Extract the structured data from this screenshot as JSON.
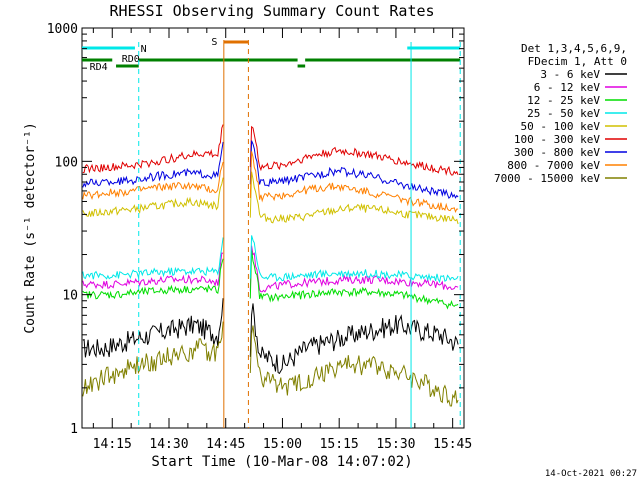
{
  "chart_data": {
    "type": "line",
    "title": "RHESSI Observing Summary Count Rates",
    "xlabel": "Start Time (10-Mar-08 14:07:02)",
    "ylabel": "Count Rate (s⁻¹ detector⁻¹)",
    "yscale": "log",
    "ylim": [
      1,
      1000
    ],
    "xlim_minutes": [
      0,
      101
    ],
    "x_ticks": [
      {
        "label": "14:15",
        "min": 8
      },
      {
        "label": "14:30",
        "min": 23
      },
      {
        "label": "14:45",
        "min": 38
      },
      {
        "label": "15:00",
        "min": 53
      },
      {
        "label": "15:15",
        "min": 68
      },
      {
        "label": "15:30",
        "min": 83
      },
      {
        "label": "15:45",
        "min": 98
      }
    ],
    "y_ticks": [
      {
        "label": "1",
        "value": 1
      },
      {
        "label": "10",
        "value": 10
      },
      {
        "label": "100",
        "value": 100
      },
      {
        "label": "1000",
        "value": 1000
      }
    ],
    "timestamp": "14-Oct-2021 00:27",
    "legend": {
      "placement": "right",
      "header": [
        "Det 1,3,4,5,6,9,",
        "FDecim 1, Att 0"
      ]
    },
    "series": [
      {
        "name": "3 - 6 keV",
        "color": "#000000",
        "values": [
          4,
          4,
          4.5,
          5,
          5.5,
          6,
          5,
          4.5,
          3.5,
          3,
          4,
          4.5,
          5,
          5.5,
          6,
          5.5,
          5,
          4
        ]
      },
      {
        "name": "6 - 12 keV",
        "color": "#e000e0",
        "values": [
          12,
          12,
          12.5,
          13,
          13,
          12,
          11,
          12,
          12.5,
          13,
          13,
          12.5,
          12,
          11
        ]
      },
      {
        "name": "12 - 25 keV",
        "color": "#00dd00",
        "values": [
          10,
          10,
          10.5,
          11,
          11,
          10,
          9.5,
          10,
          10.5,
          10.5,
          10,
          9,
          8
        ]
      },
      {
        "name": "25 - 50 keV",
        "color": "#00e8e8",
        "values": [
          14,
          14,
          14.5,
          15,
          15,
          14,
          13.5,
          14,
          14.5,
          14.5,
          14,
          13.5,
          13
        ]
      },
      {
        "name": "50 - 100 keV",
        "color": "#d0c000",
        "values": [
          40,
          42,
          44,
          47,
          50,
          46,
          40,
          37,
          38,
          42,
          45,
          43,
          40,
          38,
          36
        ]
      },
      {
        "name": "100 - 300 keV",
        "color": "#e00000",
        "values": [
          88,
          90,
          93,
          100,
          110,
          115,
          100,
          90,
          95,
          110,
          120,
          115,
          105,
          95,
          88,
          82
        ]
      },
      {
        "name": "300 - 800 keV",
        "color": "#0000e0",
        "values": [
          68,
          70,
          72,
          78,
          82,
          80,
          72,
          68,
          72,
          78,
          85,
          80,
          72,
          64,
          58,
          55
        ]
      },
      {
        "name": "800 - 7000 keV",
        "color": "#ff8000",
        "values": [
          55,
          58,
          60,
          64,
          66,
          62,
          56,
          54,
          56,
          62,
          65,
          60,
          55,
          50,
          46,
          44
        ]
      },
      {
        "name": "7000 - 15000 keV",
        "color": "#808000",
        "values": [
          2,
          2.5,
          3,
          3.5,
          4,
          3.5,
          2.5,
          2,
          2.5,
          3,
          3,
          2.5,
          2,
          1.5
        ]
      }
    ],
    "annotations": {
      "flags": [
        {
          "label": "N",
          "color": "#00e8e8"
        },
        {
          "label": "RD0",
          "color": "#008000"
        },
        {
          "label": "RD4",
          "color": "#008000"
        },
        {
          "label": "S",
          "color": "#e07000"
        }
      ]
    }
  }
}
